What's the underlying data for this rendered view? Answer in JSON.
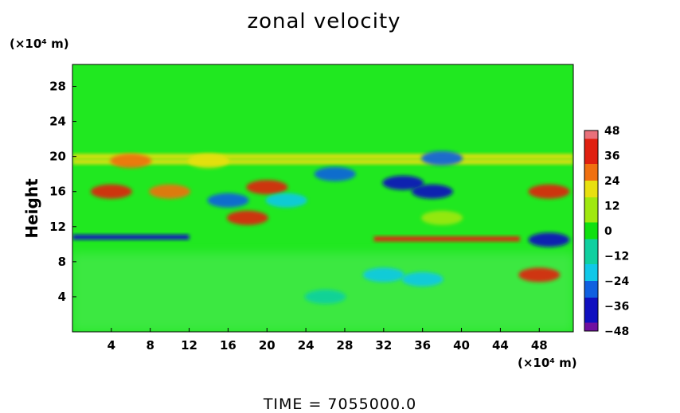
{
  "chart_data": {
    "type": "heatmap",
    "title": "zonal velocity",
    "ylabel": "Height",
    "x_unit": "(×10⁴ m)",
    "y_unit": "(×10⁴ m)",
    "xlim": [
      0,
      51.5
    ],
    "ylim": [
      0,
      30.5
    ],
    "x_ticks": [
      4,
      8,
      12,
      16,
      20,
      24,
      28,
      32,
      36,
      40,
      44,
      48
    ],
    "y_ticks": [
      4,
      8,
      12,
      16,
      20,
      24,
      28
    ],
    "colorbar": {
      "ticks": [
        48,
        36,
        24,
        12,
        0,
        -12,
        -24,
        -36,
        -48
      ],
      "range": [
        -48,
        48
      ],
      "colors": [
        "#e8707a",
        "#e02010",
        "#f07010",
        "#e8e010",
        "#a0e810",
        "#10e010",
        "#10d0a0",
        "#10c8e8",
        "#1060e0",
        "#1010c0",
        "#7010a0"
      ]
    },
    "features": [
      {
        "x": 4,
        "y": 16,
        "v": 40
      },
      {
        "x": 10,
        "y": 16,
        "v": 30
      },
      {
        "x": 18,
        "y": 13,
        "v": 36
      },
      {
        "x": 20,
        "y": 16.5,
        "v": 36
      },
      {
        "x": 16,
        "y": 15,
        "v": -24
      },
      {
        "x": 27,
        "y": 18,
        "v": -30
      },
      {
        "x": 34,
        "y": 17,
        "v": -36
      },
      {
        "x": 37,
        "y": 16,
        "v": -40
      },
      {
        "x": 22,
        "y": 15,
        "v": -20
      },
      {
        "x": 38,
        "y": 19.8,
        "v": -30
      },
      {
        "x": 49,
        "y": 10.5,
        "v": -36
      },
      {
        "x": 49,
        "y": 16,
        "v": 36
      },
      {
        "x": 48,
        "y": 6.5,
        "v": 36
      },
      {
        "x": 32,
        "y": 6.5,
        "v": -15
      },
      {
        "x": 36,
        "y": 6,
        "v": -15
      },
      {
        "x": 26,
        "y": 4,
        "v": -10
      },
      {
        "x": 6,
        "y": 19.5,
        "v": 30
      },
      {
        "x": 14,
        "y": 19.5,
        "v": 24
      },
      {
        "x": 38,
        "y": 13,
        "v": 12
      }
    ],
    "bands": [
      {
        "x0": 0,
        "x1": 12,
        "y": 10.8,
        "v": -40
      },
      {
        "x0": 31,
        "x1": 46,
        "y": 10.6,
        "v": 36
      },
      {
        "x0": 0,
        "x1": 51.5,
        "y": 20.0,
        "v": 20
      },
      {
        "x0": 0,
        "x1": 51.5,
        "y": 19.4,
        "v": 15
      }
    ]
  },
  "footer": {
    "time_label": "TIME  =  7055000.0"
  }
}
